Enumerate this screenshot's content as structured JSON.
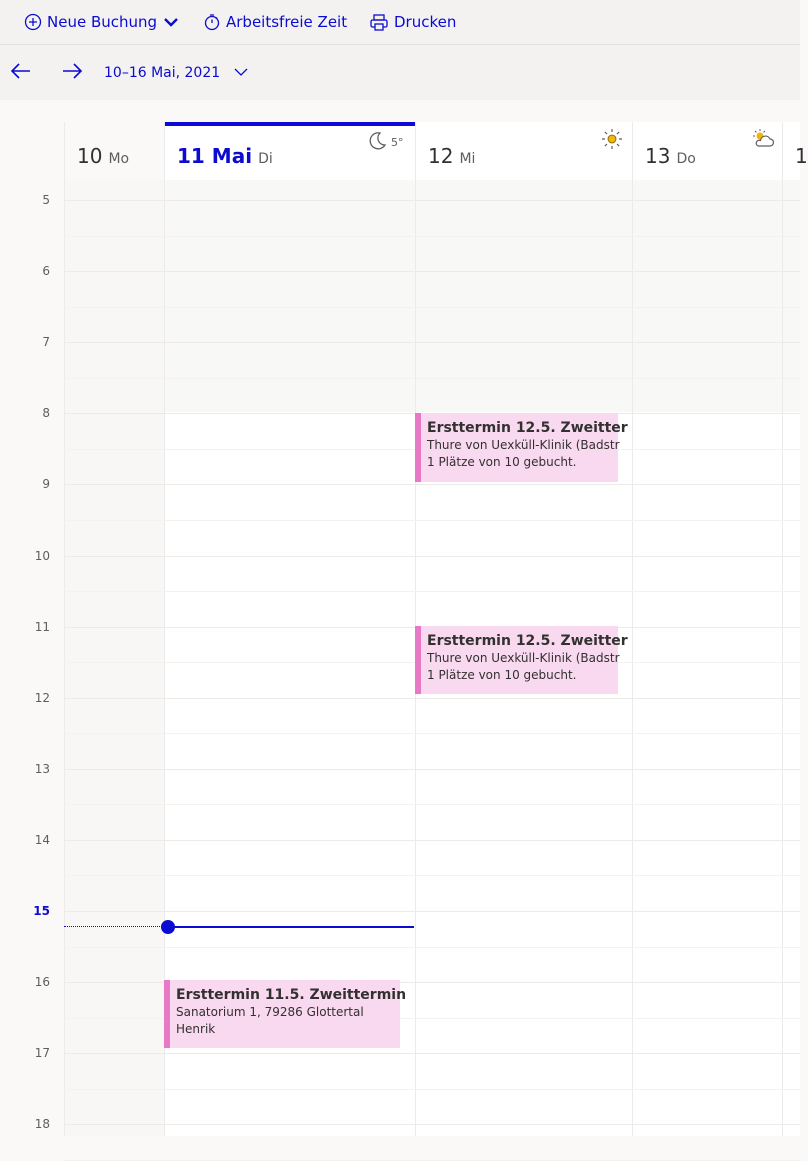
{
  "toolbar": {
    "new_booking": "Neue Buchung",
    "time_off": "Arbeitsfreie Zeit",
    "print": "Drucken"
  },
  "nav": {
    "range": "10–16 Mai, 2021"
  },
  "days": [
    {
      "num": "10",
      "name": "Mo"
    },
    {
      "num": "11 Mai",
      "name": "Di",
      "weather_temp": "5°"
    },
    {
      "num": "12",
      "name": "Mi"
    },
    {
      "num": "13",
      "name": "Do"
    },
    {
      "num": "1"
    }
  ],
  "hours": [
    "5",
    "6",
    "7",
    "8",
    "9",
    "10",
    "11",
    "12",
    "13",
    "14",
    "15",
    "16",
    "17",
    "18"
  ],
  "events": [
    {
      "title": "Ersttermin 12.5. Zweitter",
      "line1": "Thure von Uexküll-Klinik (Badstr",
      "line2": "1 Plätze von 10 gebucht."
    },
    {
      "title": "Ersttermin 12.5. Zweitter",
      "line1": "Thure von Uexküll-Klinik (Badstr",
      "line2": "1 Plätze von 10 gebucht."
    },
    {
      "title": "Ersttermin 11.5. Zweittermin",
      "line1": "Sanatorium 1, 79286 Glottertal",
      "line2": "Henrik"
    }
  ],
  "colors": {
    "accent": "#0b0bd1",
    "event_bg": "#f9d9ef",
    "event_border": "#e879c6"
  },
  "icons": {
    "new_booking": "add-circle-icon",
    "time_off": "timer-icon",
    "print": "printer-icon",
    "prev": "arrow-left-icon",
    "next": "arrow-right-icon",
    "weather_tue": "moon-icon",
    "weather_wed": "sun-icon",
    "weather_thu": "partly-cloudy-icon"
  }
}
